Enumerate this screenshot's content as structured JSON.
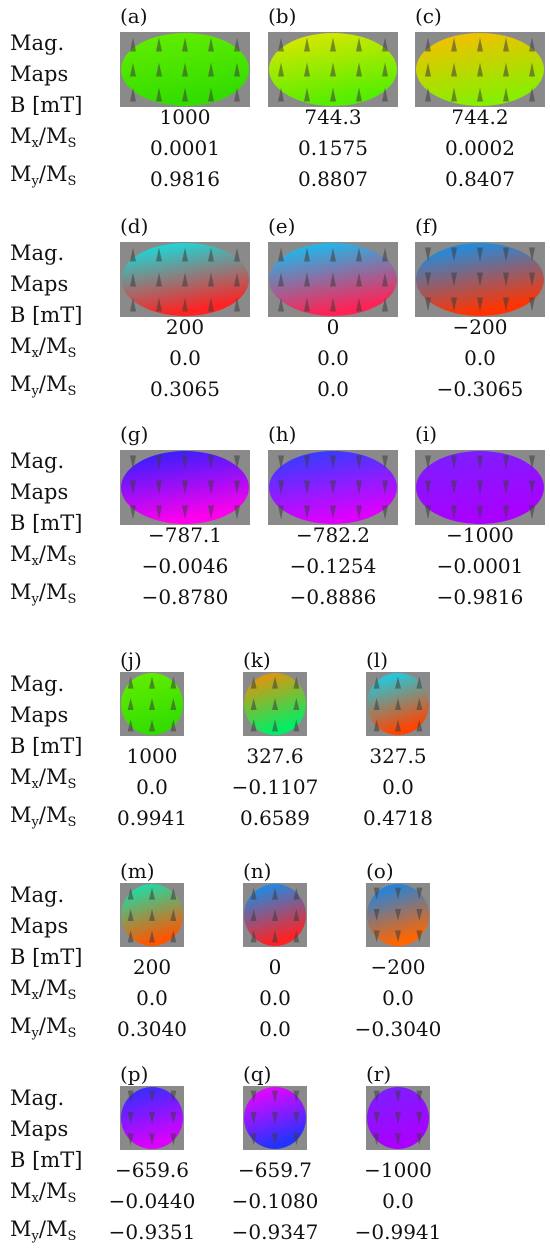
{
  "row_labels": {
    "maps_line1": "Mag.",
    "maps_line2": "Maps",
    "field": "B [mT]",
    "mx": "M",
    "mx_sub": "x",
    "my": "M",
    "my_sub": "y",
    "ms": "M",
    "ms_sub": "S"
  },
  "groups": [
    {
      "shape": "ellipse",
      "panels": [
        {
          "label": "(a)",
          "B": "1000",
          "mx": "0.0001",
          "my": "0.9816",
          "colors": [
            "#66ee00",
            "#33dd00"
          ]
        },
        {
          "label": "(b)",
          "B": "744.3",
          "mx": "0.1575",
          "my": "0.8807",
          "colors": [
            "#e6e600",
            "#55ee00"
          ]
        },
        {
          "label": "(c)",
          "B": "744.2",
          "mx": "0.0002",
          "my": "0.8407",
          "colors": [
            "#ffbb00",
            "#88ee00"
          ]
        }
      ]
    },
    {
      "shape": "ellipse",
      "panels": [
        {
          "label": "(d)",
          "B": "200",
          "mx": "0.0",
          "my": "0.3065",
          "colors": [
            "#00eeee",
            "#ff2222"
          ]
        },
        {
          "label": "(e)",
          "B": "0",
          "mx": "0.0",
          "my": "0.0",
          "colors": [
            "#00ccff",
            "#ff2255"
          ]
        },
        {
          "label": "(f)",
          "B": "−200",
          "mx": "0.0",
          "my": "−0.3065",
          "colors": [
            "#0099ff",
            "#ff3300"
          ]
        }
      ]
    },
    {
      "shape": "ellipse",
      "panels": [
        {
          "label": "(g)",
          "B": "−787.1",
          "mx": "−0.0046",
          "my": "−0.8780",
          "colors": [
            "#2222ff",
            "#ff00ee"
          ]
        },
        {
          "label": "(h)",
          "B": "−782.2",
          "mx": "−0.1254",
          "my": "−0.8886",
          "colors": [
            "#2244ff",
            "#dd00ff"
          ]
        },
        {
          "label": "(i)",
          "B": "−1000",
          "mx": "−0.0001",
          "my": "−0.9816",
          "colors": [
            "#7722ff",
            "#aa00ff"
          ]
        }
      ]
    },
    {
      "shape": "circle",
      "panels": [
        {
          "label": "(j)",
          "B": "1000",
          "mx": "0.0",
          "my": "0.9941",
          "colors": [
            "#66ee00",
            "#33dd00"
          ]
        },
        {
          "label": "(k)",
          "B": "327.6",
          "mx": "−0.1107",
          "my": "0.6589",
          "colors": [
            "#ff8800",
            "#00ee66"
          ]
        },
        {
          "label": "(l)",
          "B": "327.5",
          "mx": "0.0",
          "my": "0.4718",
          "colors": [
            "#00ddff",
            "#ff4400"
          ]
        }
      ]
    },
    {
      "shape": "circle",
      "panels": [
        {
          "label": "(m)",
          "B": "200",
          "mx": "0.0",
          "my": "0.3040",
          "colors": [
            "#00eebb",
            "#ff5500"
          ]
        },
        {
          "label": "(n)",
          "B": "0",
          "mx": "0.0",
          "my": "0.0",
          "colors": [
            "#0099ff",
            "#ff2222"
          ]
        },
        {
          "label": "(o)",
          "B": "−200",
          "mx": "0.0",
          "my": "−0.3040",
          "colors": [
            "#0088ff",
            "#ff6600"
          ]
        }
      ]
    },
    {
      "shape": "circle",
      "panels": [
        {
          "label": "(p)",
          "B": "−659.6",
          "mx": "−0.0440",
          "my": "−0.9351",
          "colors": [
            "#2233ff",
            "#dd00ff"
          ]
        },
        {
          "label": "(q)",
          "B": "−659.7",
          "mx": "−0.1080",
          "my": "−0.9347",
          "colors": [
            "#ff00ff",
            "#2233ff"
          ]
        },
        {
          "label": "(r)",
          "B": "−1000",
          "mx": "0.0",
          "my": "−0.9941",
          "colors": [
            "#7722ff",
            "#aa00ff"
          ]
        }
      ]
    }
  ]
}
